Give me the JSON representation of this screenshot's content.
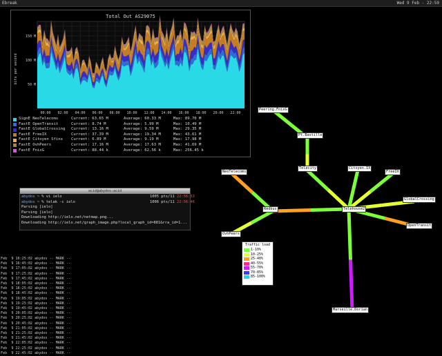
{
  "topbar": {
    "wm": "Ebreak",
    "clock": "Wed 9 Feb - 22:59"
  },
  "graph": {
    "title": "Total Out AS29075",
    "ylabel": "bits per second",
    "yticks": [
      "150 M",
      "100 M",
      "50 M"
    ],
    "xticks": [
      "00:00",
      "02:00",
      "04:00",
      "06:00",
      "08:00",
      "10:00",
      "12:00",
      "14:00",
      "16:00",
      "18:00",
      "20:00",
      "22:00"
    ],
    "legend": [
      {
        "name": "SignE NeoTelecoms",
        "cur": "Current: 63.65 M",
        "avg": "Average: 60.33 M",
        "max": "Max: 89.70 M",
        "color": "#29d9e6"
      },
      {
        "name": "FastE OpenTransit",
        "cur": "Current: 8.74 M",
        "avg": "Average: 5.99 M",
        "max": "Max: 10.49 M",
        "color": "#2f6cd6"
      },
      {
        "name": "FastE GlobalCrossing",
        "cur": "Current: 13.16 M",
        "avg": "Average: 9.59 M",
        "max": "Max: 29.35 M",
        "color": "#3a2cc2"
      },
      {
        "name": "FastE FreeIX",
        "cur": "Current: 37.39 M",
        "avg": "Average: 19.34 M",
        "max": "Max: 43.61 M",
        "color": "#c67c22"
      },
      {
        "name": "FastE Citoyen Sfinx",
        "cur": "Current: 6.89 M",
        "avg": "Average: 9.19 M",
        "max": "Max: 17.98 M",
        "color": "#e8b04a"
      },
      {
        "name": "FastE OvhPeers",
        "cur": "Current: 17.16 M",
        "avg": "Average: 17.63 M",
        "max": "Max: 41.69 M",
        "color": "#a8884e"
      },
      {
        "name": "FastE FnixG",
        "cur": "Current: 88.44 k",
        "avg": "Average: 62.56 k",
        "max": "Max: 256.45 k",
        "color": "#d85ad8"
      }
    ]
  },
  "terminal": {
    "title": "acid@abydos:acid",
    "lines": [
      {
        "user": "abydos",
        "cmd": "~ % vi ielo",
        "right": "1005 pts/11",
        "time": "22:56:33"
      },
      {
        "user": "abydos",
        "cmd": "~ % telak -c ielo",
        "right": "1006 pts/11",
        "time": "22:56:46"
      },
      {
        "text": "Parsing [ielo]"
      },
      {
        "text": "Parsing [ielo]"
      },
      {
        "text": "Downloading http://ielo.net/netmap.png..."
      },
      {
        "text": "Downloading http://ielo.net/graph_image.php?local_graph_id=881&rra_id=1..."
      }
    ]
  },
  "log": [
    "Feb  9 16:25:02 abydos -- MARK --",
    "Feb  9 16:45:02 abydos -- MARK --",
    "Feb  9 17:05:02 abydos -- MARK --",
    "Feb  9 17:25:02 abydos -- MARK --",
    "Feb  9 17:45:02 abydos -- MARK --",
    "Feb  9 18:05:02 abydos -- MARK --",
    "Feb  9 18:25:02 abydos -- MARK --",
    "Feb  9 18:45:02 abydos -- MARK --",
    "Feb  9 19:05:02 abydos -- MARK --",
    "Feb  9 19:25:02 abydos -- MARK --",
    "Feb  9 19:45:02 abydos -- MARK --",
    "Feb  9 20:05:02 abydos -- MARK --",
    "Feb  9 20:25:02 abydos -- MARK --",
    "Feb  9 20:45:02 abydos -- MARK --",
    "Feb  9 21:05:02 abydos -- MARK --",
    "Feb  9 21:25:02 abydos -- MARK --",
    "Feb  9 21:45:02 abydos -- MARK --",
    "Feb  9 22:05:02 abydos -- MARK --",
    "Feb  9 22:25:02 abydos -- MARK --",
    "Feb  9 22:45:02 abydos -- MARK --"
  ],
  "map": {
    "nodes": {
      "peering": "Peering.FnixG",
      "ptbastille": "Pt.Bastille",
      "neotelecoms": "NeoTelecoms",
      "telecity": "Telecity",
      "citoyen": "Citoyen.IX",
      "freeix": "FreeIX",
      "global": "GlobalCrossing",
      "redbus": "Redbus",
      "telehouse": "Telehouse2",
      "opentransit": "OpenTransit",
      "ovhpeers": "OvhPeers",
      "marseille": "Marseille.Dorian"
    },
    "legend_title": "Traffic load",
    "legend": [
      {
        "label": "1-10%",
        "color": "#7dff3a"
      },
      {
        "label": "10-25%",
        "color": "#e6ff33"
      },
      {
        "label": "25-40%",
        "color": "#ffa020"
      },
      {
        "label": "40-55%",
        "color": "#ff2a8a"
      },
      {
        "label": "55-70%",
        "color": "#d21aff"
      },
      {
        "label": "70-85%",
        "color": "#3a3aff"
      },
      {
        "label": "85-100%",
        "color": "#20d0ff"
      }
    ]
  }
}
